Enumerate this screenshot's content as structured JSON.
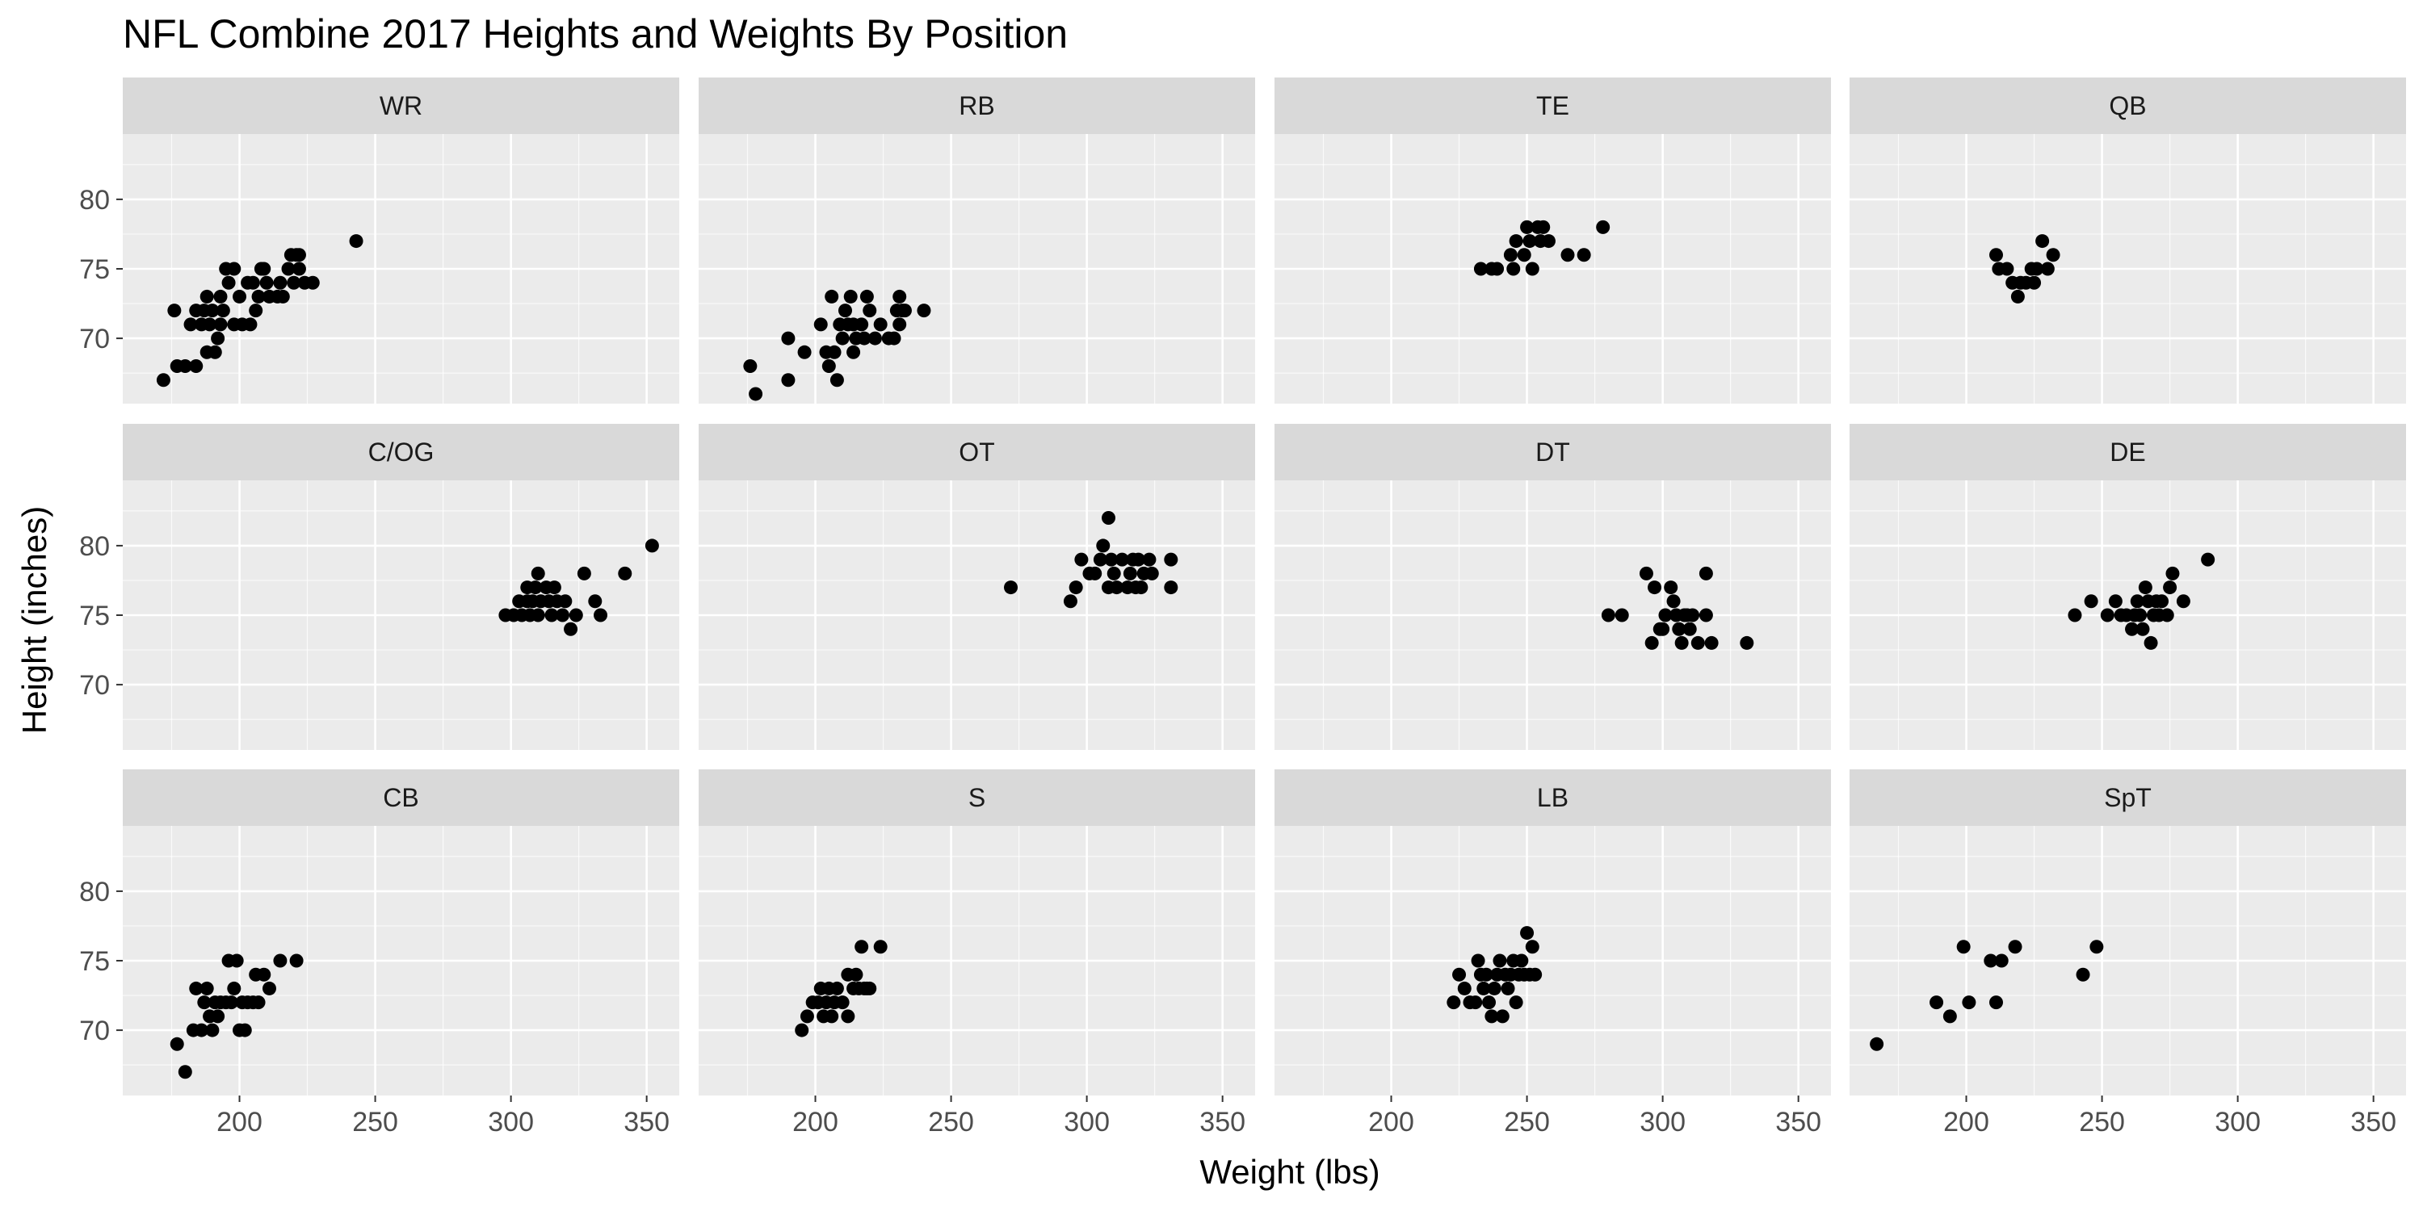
{
  "chart_data": {
    "type": "scatter",
    "title": "NFL Combine 2017 Heights and Weights By Position",
    "xlabel": "Weight (lbs)",
    "ylabel": "Height (inches)",
    "xlim": [
      157,
      362
    ],
    "ylim": [
      65.3,
      84.7
    ],
    "x_ticks": [
      200,
      250,
      300,
      350
    ],
    "y_ticks": [
      70,
      75,
      80
    ],
    "grid": true,
    "facet_layout": {
      "rows": 3,
      "cols": 4
    },
    "colors": {
      "panel_bg": "#EBEBEB",
      "strip_bg": "#D9D9D9",
      "grid": "#FFFFFF",
      "point": "#000000"
    },
    "panels": [
      {
        "name": "WR",
        "points": [
          [
            172,
            67
          ],
          [
            177,
            68
          ],
          [
            180,
            68
          ],
          [
            184,
            68
          ],
          [
            176,
            72
          ],
          [
            182,
            71
          ],
          [
            184,
            72
          ],
          [
            186,
            71
          ],
          [
            187,
            72
          ],
          [
            188,
            73
          ],
          [
            189,
            71
          ],
          [
            190,
            72
          ],
          [
            188,
            69
          ],
          [
            191,
            69
          ],
          [
            192,
            70
          ],
          [
            193,
            71
          ],
          [
            193,
            73
          ],
          [
            194,
            72
          ],
          [
            195,
            75
          ],
          [
            196,
            74
          ],
          [
            198,
            75
          ],
          [
            198,
            71
          ],
          [
            200,
            73
          ],
          [
            201,
            71
          ],
          [
            203,
            74
          ],
          [
            205,
            74
          ],
          [
            204,
            71
          ],
          [
            206,
            72
          ],
          [
            207,
            73
          ],
          [
            208,
            75
          ],
          [
            209,
            75
          ],
          [
            210,
            74
          ],
          [
            211,
            73
          ],
          [
            214,
            73
          ],
          [
            215,
            74
          ],
          [
            216,
            73
          ],
          [
            218,
            75
          ],
          [
            219,
            76
          ],
          [
            220,
            74
          ],
          [
            221,
            76
          ],
          [
            222,
            76
          ],
          [
            222,
            75
          ],
          [
            224,
            74
          ],
          [
            227,
            74
          ],
          [
            243,
            77
          ]
        ]
      },
      {
        "name": "RB",
        "points": [
          [
            176,
            68
          ],
          [
            178,
            66
          ],
          [
            190,
            70
          ],
          [
            190,
            67
          ],
          [
            196,
            69
          ],
          [
            202,
            71
          ],
          [
            204,
            69
          ],
          [
            205,
            68
          ],
          [
            206,
            73
          ],
          [
            207,
            69
          ],
          [
            208,
            67
          ],
          [
            209,
            71
          ],
          [
            210,
            70
          ],
          [
            211,
            72
          ],
          [
            212,
            71
          ],
          [
            213,
            73
          ],
          [
            214,
            71
          ],
          [
            214,
            69
          ],
          [
            215,
            70
          ],
          [
            217,
            71
          ],
          [
            218,
            70
          ],
          [
            219,
            73
          ],
          [
            220,
            72
          ],
          [
            222,
            70
          ],
          [
            224,
            71
          ],
          [
            227,
            70
          ],
          [
            229,
            70
          ],
          [
            230,
            72
          ],
          [
            231,
            73
          ],
          [
            231,
            71
          ],
          [
            232,
            72
          ],
          [
            233,
            72
          ],
          [
            240,
            72
          ]
        ]
      },
      {
        "name": "TE",
        "points": [
          [
            233,
            75
          ],
          [
            237,
            75
          ],
          [
            239,
            75
          ],
          [
            244,
            76
          ],
          [
            245,
            75
          ],
          [
            246,
            77
          ],
          [
            249,
            76
          ],
          [
            250,
            78
          ],
          [
            251,
            77
          ],
          [
            252,
            75
          ],
          [
            254,
            78
          ],
          [
            255,
            77
          ],
          [
            256,
            78
          ],
          [
            258,
            77
          ],
          [
            265,
            76
          ],
          [
            271,
            76
          ],
          [
            278,
            78
          ]
        ]
      },
      {
        "name": "QB",
        "points": [
          [
            211,
            76
          ],
          [
            212,
            75
          ],
          [
            215,
            75
          ],
          [
            217,
            74
          ],
          [
            219,
            73
          ],
          [
            220,
            74
          ],
          [
            222,
            74
          ],
          [
            224,
            75
          ],
          [
            225,
            74
          ],
          [
            226,
            75
          ],
          [
            228,
            77
          ],
          [
            230,
            75
          ],
          [
            232,
            76
          ]
        ]
      },
      {
        "name": "C/OG",
        "points": [
          [
            298,
            75
          ],
          [
            301,
            75
          ],
          [
            303,
            76
          ],
          [
            304,
            75
          ],
          [
            306,
            76
          ],
          [
            306,
            77
          ],
          [
            307,
            75
          ],
          [
            308,
            76
          ],
          [
            309,
            77
          ],
          [
            310,
            75
          ],
          [
            310,
            78
          ],
          [
            311,
            76
          ],
          [
            313,
            77
          ],
          [
            314,
            76
          ],
          [
            315,
            75
          ],
          [
            316,
            77
          ],
          [
            317,
            76
          ],
          [
            319,
            75
          ],
          [
            320,
            76
          ],
          [
            322,
            74
          ],
          [
            324,
            75
          ],
          [
            327,
            78
          ],
          [
            331,
            76
          ],
          [
            333,
            75
          ],
          [
            342,
            78
          ],
          [
            352,
            80
          ]
        ]
      },
      {
        "name": "OT",
        "points": [
          [
            272,
            77
          ],
          [
            294,
            76
          ],
          [
            296,
            77
          ],
          [
            298,
            79
          ],
          [
            301,
            78
          ],
          [
            303,
            78
          ],
          [
            305,
            79
          ],
          [
            306,
            80
          ],
          [
            308,
            82
          ],
          [
            308,
            77
          ],
          [
            309,
            79
          ],
          [
            310,
            78
          ],
          [
            311,
            77
          ],
          [
            313,
            79
          ],
          [
            315,
            77
          ],
          [
            316,
            78
          ],
          [
            317,
            79
          ],
          [
            318,
            77
          ],
          [
            319,
            79
          ],
          [
            320,
            77
          ],
          [
            321,
            78
          ],
          [
            323,
            79
          ],
          [
            324,
            78
          ],
          [
            331,
            79
          ],
          [
            331,
            77
          ]
        ]
      },
      {
        "name": "DT",
        "points": [
          [
            280,
            75
          ],
          [
            285,
            75
          ],
          [
            294,
            78
          ],
          [
            296,
            73
          ],
          [
            297,
            77
          ],
          [
            299,
            74
          ],
          [
            300,
            74
          ],
          [
            301,
            75
          ],
          [
            303,
            77
          ],
          [
            304,
            76
          ],
          [
            305,
            75
          ],
          [
            306,
            74
          ],
          [
            307,
            73
          ],
          [
            308,
            75
          ],
          [
            309,
            75
          ],
          [
            310,
            74
          ],
          [
            311,
            75
          ],
          [
            313,
            73
          ],
          [
            316,
            78
          ],
          [
            316,
            75
          ],
          [
            318,
            73
          ],
          [
            331,
            73
          ]
        ]
      },
      {
        "name": "DE",
        "points": [
          [
            240,
            75
          ],
          [
            246,
            76
          ],
          [
            252,
            75
          ],
          [
            255,
            76
          ],
          [
            257,
            75
          ],
          [
            259,
            75
          ],
          [
            261,
            74
          ],
          [
            262,
            75
          ],
          [
            263,
            76
          ],
          [
            264,
            75
          ],
          [
            265,
            74
          ],
          [
            266,
            77
          ],
          [
            267,
            76
          ],
          [
            268,
            73
          ],
          [
            269,
            75
          ],
          [
            270,
            76
          ],
          [
            271,
            75
          ],
          [
            272,
            76
          ],
          [
            274,
            75
          ],
          [
            275,
            77
          ],
          [
            276,
            78
          ],
          [
            280,
            76
          ],
          [
            289,
            79
          ]
        ]
      },
      {
        "name": "CB",
        "points": [
          [
            177,
            69
          ],
          [
            180,
            67
          ],
          [
            183,
            70
          ],
          [
            184,
            73
          ],
          [
            186,
            70
          ],
          [
            187,
            72
          ],
          [
            188,
            73
          ],
          [
            189,
            71
          ],
          [
            190,
            70
          ],
          [
            191,
            72
          ],
          [
            192,
            71
          ],
          [
            193,
            72
          ],
          [
            195,
            72
          ],
          [
            196,
            75
          ],
          [
            197,
            72
          ],
          [
            198,
            73
          ],
          [
            199,
            75
          ],
          [
            200,
            70
          ],
          [
            201,
            72
          ],
          [
            202,
            70
          ],
          [
            203,
            72
          ],
          [
            205,
            72
          ],
          [
            206,
            74
          ],
          [
            207,
            72
          ],
          [
            209,
            74
          ],
          [
            211,
            73
          ],
          [
            215,
            75
          ],
          [
            221,
            75
          ]
        ]
      },
      {
        "name": "S",
        "points": [
          [
            195,
            70
          ],
          [
            197,
            71
          ],
          [
            199,
            72
          ],
          [
            201,
            72
          ],
          [
            202,
            73
          ],
          [
            203,
            71
          ],
          [
            204,
            72
          ],
          [
            205,
            73
          ],
          [
            206,
            71
          ],
          [
            207,
            72
          ],
          [
            208,
            73
          ],
          [
            210,
            72
          ],
          [
            212,
            71
          ],
          [
            212,
            74
          ],
          [
            214,
            73
          ],
          [
            215,
            74
          ],
          [
            216,
            73
          ],
          [
            217,
            76
          ],
          [
            218,
            73
          ],
          [
            219,
            73
          ],
          [
            220,
            73
          ],
          [
            224,
            76
          ]
        ]
      },
      {
        "name": "LB",
        "points": [
          [
            223,
            72
          ],
          [
            225,
            74
          ],
          [
            227,
            73
          ],
          [
            229,
            72
          ],
          [
            231,
            72
          ],
          [
            232,
            75
          ],
          [
            233,
            74
          ],
          [
            234,
            73
          ],
          [
            235,
            74
          ],
          [
            236,
            72
          ],
          [
            237,
            71
          ],
          [
            238,
            73
          ],
          [
            239,
            74
          ],
          [
            240,
            75
          ],
          [
            241,
            71
          ],
          [
            242,
            74
          ],
          [
            243,
            73
          ],
          [
            244,
            74
          ],
          [
            245,
            75
          ],
          [
            246,
            72
          ],
          [
            247,
            74
          ],
          [
            248,
            75
          ],
          [
            249,
            74
          ],
          [
            250,
            77
          ],
          [
            251,
            74
          ],
          [
            252,
            76
          ],
          [
            253,
            74
          ]
        ]
      },
      {
        "name": "SpT",
        "points": [
          [
            167,
            69
          ],
          [
            189,
            72
          ],
          [
            194,
            71
          ],
          [
            199,
            76
          ],
          [
            201,
            72
          ],
          [
            209,
            75
          ],
          [
            211,
            72
          ],
          [
            213,
            75
          ],
          [
            218,
            76
          ],
          [
            243,
            74
          ],
          [
            248,
            76
          ]
        ]
      }
    ]
  }
}
